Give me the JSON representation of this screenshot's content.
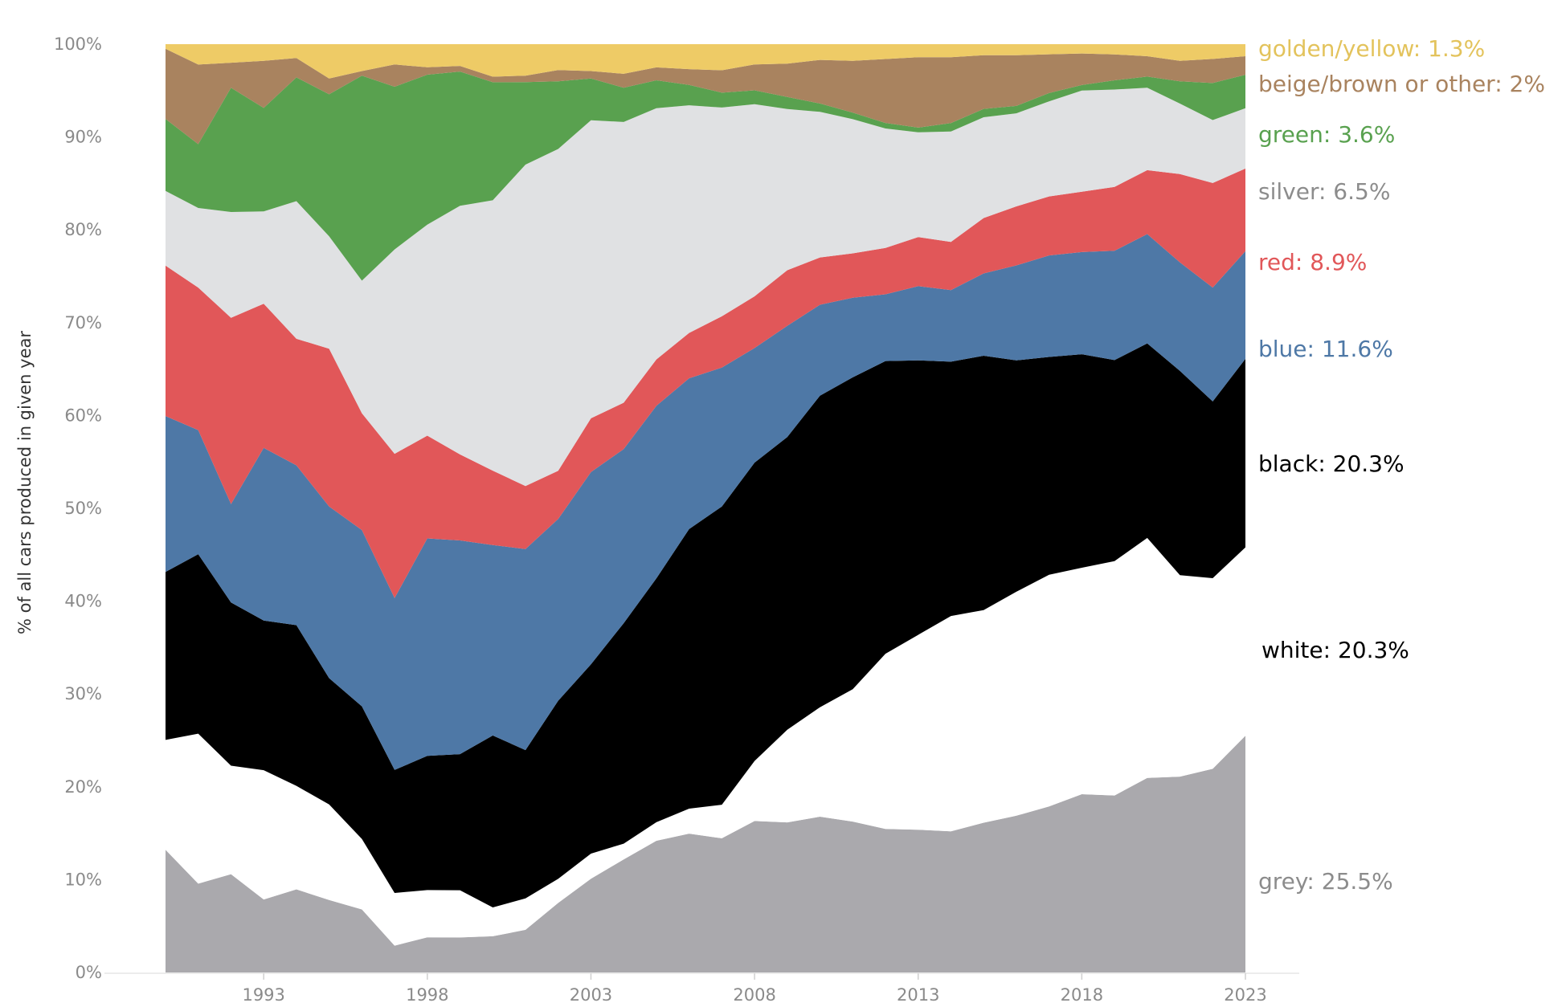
{
  "chart_data": {
    "type": "area",
    "stacked": true,
    "normalized": true,
    "title": "",
    "xlabel": "",
    "ylabel": "% of all cars produced in given year",
    "ylim": [
      0,
      100
    ],
    "y_ticks": [
      "0%",
      "10%",
      "20%",
      "30%",
      "40%",
      "50%",
      "60%",
      "70%",
      "80%",
      "90%",
      "100%"
    ],
    "x_ticks": [
      1993,
      1998,
      2003,
      2008,
      2013,
      2018,
      2023
    ],
    "grid": false,
    "legend": "direct labels at right end",
    "x": [
      1990,
      1991,
      1992,
      1993,
      1994,
      1995,
      1996,
      1997,
      1998,
      1999,
      2000,
      2001,
      2002,
      2003,
      2004,
      2005,
      2006,
      2007,
      2008,
      2009,
      2010,
      2011,
      2012,
      2013,
      2014,
      2015,
      2016,
      2017,
      2018,
      2019,
      2020,
      2021,
      2022,
      2023
    ],
    "series": [
      {
        "name": "grey",
        "label": "grey: 25.5%",
        "color": "#aaa9ad",
        "values": [
          13.3,
          9.6,
          10.6,
          7.9,
          9.0,
          7.8,
          6.8,
          2.9,
          3.8,
          3.7,
          3.9,
          4.6,
          7.5,
          10.1,
          12.2,
          14.2,
          15.0,
          14.4,
          16.4,
          16.2,
          16.8,
          16.3,
          15.5,
          15.4,
          15.2,
          16.2,
          17.0,
          18.0,
          19.2,
          19.1,
          21.0,
          21.1,
          22.0,
          25.5
        ]
      },
      {
        "name": "white",
        "label": "white: 20.3%",
        "color": "#ffffff",
        "values": [
          11.9,
          16.2,
          11.7,
          14.0,
          11.2,
          10.3,
          7.6,
          5.7,
          5.1,
          5.0,
          3.1,
          3.4,
          2.6,
          2.7,
          1.7,
          2.0,
          2.7,
          3.6,
          6.5,
          10.0,
          11.8,
          14.3,
          18.9,
          21.0,
          23.2,
          23.0,
          24.3,
          25.1,
          24.4,
          25.3,
          25.9,
          21.7,
          20.6,
          20.3
        ]
      },
      {
        "name": "black",
        "label": "black: 20.3%",
        "color": "#000000",
        "values": [
          18.2,
          19.4,
          17.6,
          16.2,
          17.4,
          13.6,
          14.3,
          13.3,
          14.5,
          14.4,
          18.5,
          16.0,
          19.2,
          20.4,
          23.8,
          26.3,
          30.2,
          32.0,
          32.3,
          31.6,
          33.6,
          33.7,
          31.6,
          29.6,
          27.4,
          27.5,
          25.1,
          23.6,
          23.0,
          21.7,
          21.0,
          22.0,
          19.1,
          20.3
        ]
      },
      {
        "name": "blue",
        "label": "blue: 11.6%",
        "color": "#4e78a6",
        "values": [
          16.9,
          13.4,
          10.6,
          18.7,
          17.3,
          18.5,
          19.0,
          18.6,
          23.5,
          22.6,
          20.5,
          21.7,
          19.6,
          20.7,
          18.8,
          18.6,
          16.3,
          14.9,
          12.4,
          12.0,
          9.8,
          8.6,
          7.2,
          8.0,
          7.7,
          8.9,
          10.3,
          11.0,
          11.0,
          11.8,
          11.8,
          11.7,
          12.3,
          11.6
        ]
      },
      {
        "name": "red",
        "label": "red: 8.9%",
        "color": "#e15759",
        "values": [
          16.3,
          15.4,
          20.1,
          15.6,
          13.7,
          17.0,
          12.6,
          15.6,
          11.1,
          9.1,
          8.0,
          6.8,
          5.2,
          5.8,
          5.0,
          5.0,
          4.9,
          5.5,
          5.6,
          6.0,
          5.1,
          4.8,
          5.0,
          5.3,
          5.2,
          6.0,
          6.4,
          6.4,
          6.5,
          6.9,
          6.9,
          9.5,
          11.3,
          8.9
        ]
      },
      {
        "name": "silver",
        "label": "silver: 6.5%",
        "color": "#e0e1e3",
        "values": [
          8.1,
          8.6,
          11.4,
          10.0,
          14.9,
          12.1,
          14.3,
          22.1,
          22.8,
          26.3,
          29.1,
          34.7,
          34.7,
          32.1,
          30.3,
          27.1,
          24.6,
          22.4,
          20.8,
          17.4,
          15.7,
          14.5,
          12.9,
          11.3,
          11.9,
          10.9,
          10.1,
          10.3,
          10.9,
          10.5,
          8.9,
          7.6,
          6.8,
          6.5
        ]
      },
      {
        "name": "green",
        "label": "green: 3.6%",
        "color": "#59a14f",
        "values": [
          7.8,
          6.9,
          13.4,
          11.2,
          13.4,
          15.3,
          22.1,
          17.6,
          16.2,
          14.2,
          12.7,
          8.9,
          7.3,
          4.5,
          3.7,
          3.0,
          2.2,
          1.6,
          1.5,
          1.3,
          0.9,
          0.7,
          0.6,
          0.5,
          0.9,
          0.9,
          0.8,
          0.9,
          0.6,
          1.0,
          1.2,
          2.4,
          4.0,
          3.6
        ]
      },
      {
        "name": "beige/brown or other",
        "label": "beige/brown or other: 2%",
        "color": "#a9835f",
        "values": [
          7.6,
          8.6,
          2.7,
          5.1,
          2.1,
          1.7,
          0.5,
          2.4,
          0.8,
          0.6,
          0.6,
          0.7,
          1.2,
          0.8,
          1.5,
          1.4,
          1.7,
          2.4,
          2.8,
          3.6,
          4.7,
          5.6,
          6.9,
          7.6,
          7.1,
          5.8,
          5.5,
          4.2,
          3.4,
          2.8,
          2.2,
          2.2,
          2.6,
          2.0
        ]
      },
      {
        "name": "golden/yellow",
        "label": "golden/yellow: 1.3%",
        "color": "#eecb66",
        "values": [
          0.5,
          2.2,
          2.0,
          1.8,
          1.5,
          3.7,
          2.9,
          2.2,
          2.5,
          2.3,
          3.5,
          3.4,
          2.8,
          2.9,
          3.2,
          2.5,
          2.7,
          2.8,
          2.2,
          2.1,
          1.7,
          1.8,
          1.6,
          1.4,
          1.4,
          1.2,
          1.2,
          1.1,
          1.0,
          1.1,
          1.3,
          1.8,
          1.6,
          1.3
        ]
      }
    ]
  }
}
